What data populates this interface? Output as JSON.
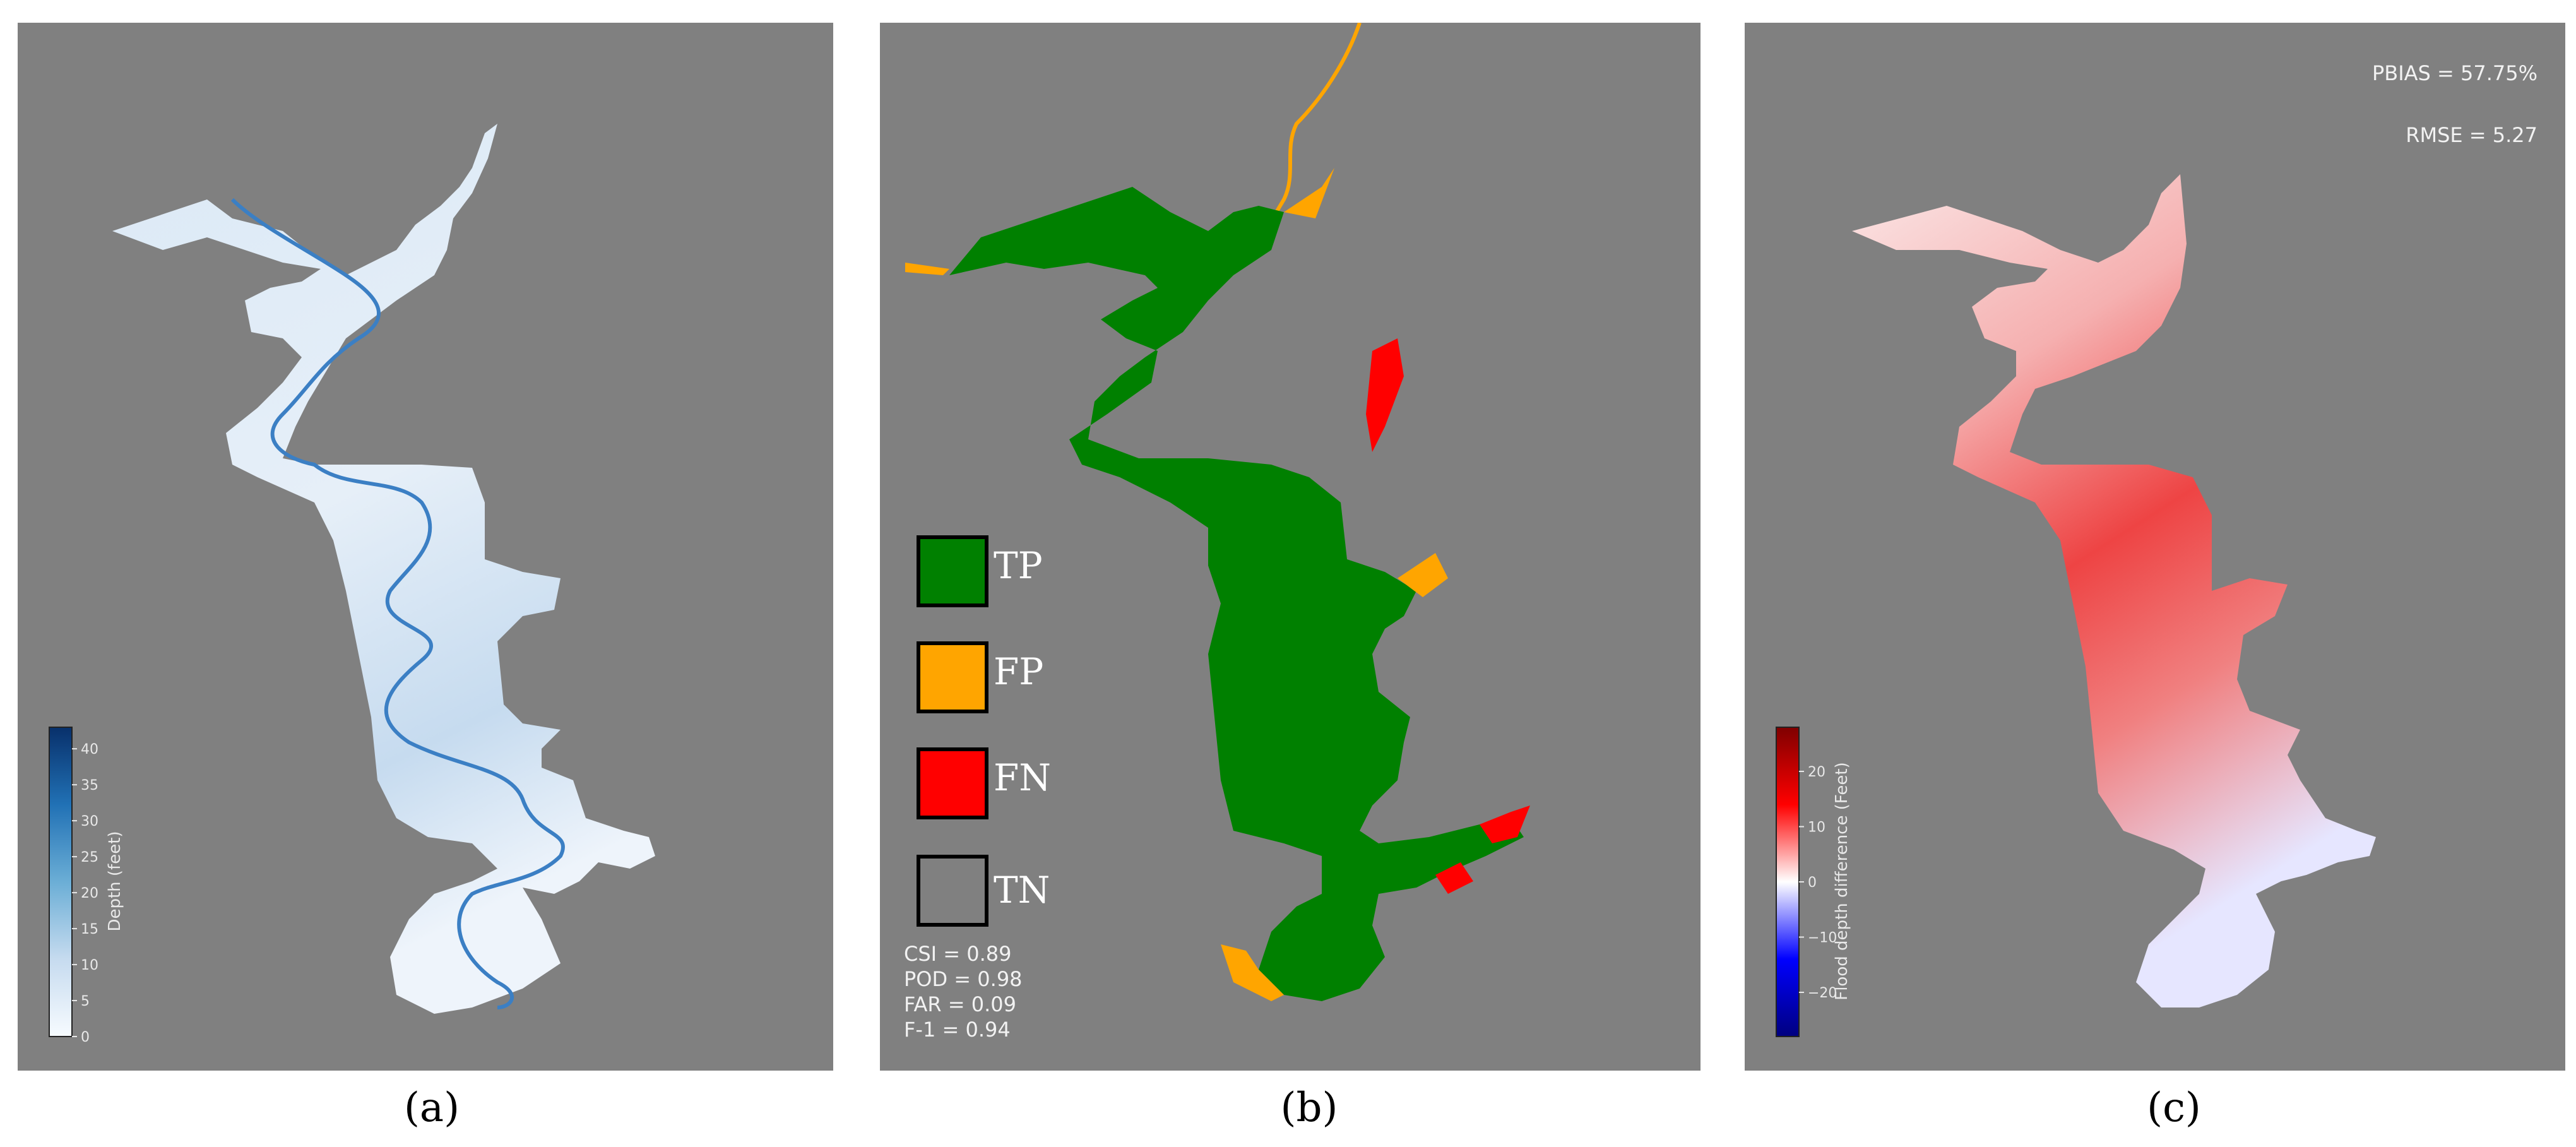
{
  "panels": {
    "a": {
      "caption": "(a)",
      "colorbar": {
        "label": "Depth (feet)",
        "ticks": [
          "0",
          "5",
          "10",
          "15",
          "20",
          "25",
          "30",
          "35",
          "40"
        ],
        "range": [
          0,
          43
        ],
        "colors": {
          "low": "#f7fbff",
          "high": "#08306b"
        }
      }
    },
    "b": {
      "caption": "(b)",
      "legend": [
        {
          "label": "TP",
          "color": "#008000"
        },
        {
          "label": "FP",
          "color": "#ffa500"
        },
        {
          "label": "FN",
          "color": "#ff0000"
        },
        {
          "label": "TN",
          "color": "#808080"
        }
      ],
      "metrics": [
        "CSI = 0.89",
        "POD = 0.98",
        "FAR = 0.09",
        "F-1 = 0.94"
      ]
    },
    "c": {
      "caption": "(c)",
      "stats": {
        "pbias": "PBIAS = 57.75%",
        "rmse": "RMSE = 5.27"
      },
      "colorbar": {
        "label": "Flood depth difference (Feet)",
        "ticks": [
          "−20",
          "−10",
          "0",
          "10",
          "20"
        ],
        "range": [
          -28,
          28
        ],
        "colors": {
          "low": "#00007f",
          "mid": "#ffffff",
          "high": "#7f0000"
        }
      }
    }
  }
}
